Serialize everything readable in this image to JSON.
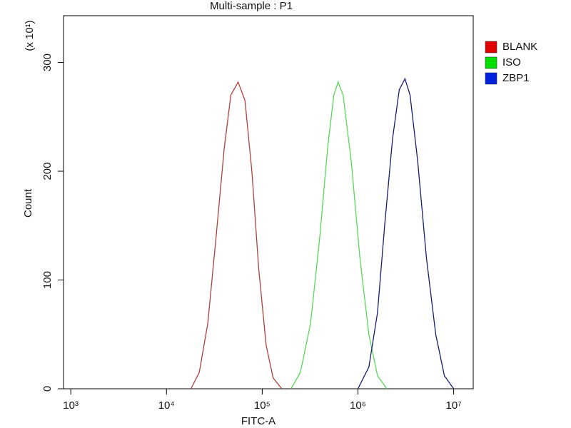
{
  "chart_data": {
    "type": "line",
    "title": "Multi-sample : P1",
    "xlabel": "FITC-A",
    "ylabel": "Count",
    "yscale_note": "(x 10¹)",
    "xscale": "log",
    "xlim": [
      840,
      16000000
    ],
    "xticks": [
      {
        "value": 1000,
        "label": "10³"
      },
      {
        "value": 10000,
        "label": "10⁴"
      },
      {
        "value": 100000,
        "label": "10⁵"
      },
      {
        "value": 1000000,
        "label": "10⁶"
      },
      {
        "value": 10000000,
        "label": "10⁷"
      }
    ],
    "ylim": [
      0,
      343
    ],
    "yticks": [
      0,
      100,
      200,
      300
    ],
    "grid": false,
    "legend": "right",
    "series": [
      {
        "name": "BLANK",
        "color": "#b0403a",
        "legend_color": "#e00000",
        "x": [
          18000,
          22000,
          27000,
          33000,
          40000,
          47000,
          56000,
          66000,
          78000,
          92000,
          110000,
          130000,
          160000
        ],
        "values": [
          0,
          15,
          60,
          140,
          220,
          270,
          282,
          265,
          200,
          110,
          40,
          10,
          0
        ]
      },
      {
        "name": "ISO",
        "color": "#5ad65a",
        "legend_color": "#00e000",
        "x": [
          200000,
          250000,
          320000,
          400000,
          480000,
          560000,
          620000,
          700000,
          850000,
          1050000,
          1300000,
          1600000,
          2000000
        ],
        "values": [
          0,
          15,
          60,
          140,
          220,
          270,
          282,
          270,
          210,
          120,
          50,
          12,
          0
        ]
      },
      {
        "name": "ZBP1",
        "color": "#1a1a70",
        "legend_color": "#0020e0",
        "x": [
          1000000,
          1300000,
          1600000,
          1900000,
          2300000,
          2700000,
          3100000,
          3500000,
          4200000,
          5200000,
          6500000,
          8000000,
          10000000
        ],
        "values": [
          0,
          20,
          70,
          150,
          230,
          275,
          285,
          270,
          210,
          120,
          50,
          12,
          0
        ]
      }
    ]
  }
}
